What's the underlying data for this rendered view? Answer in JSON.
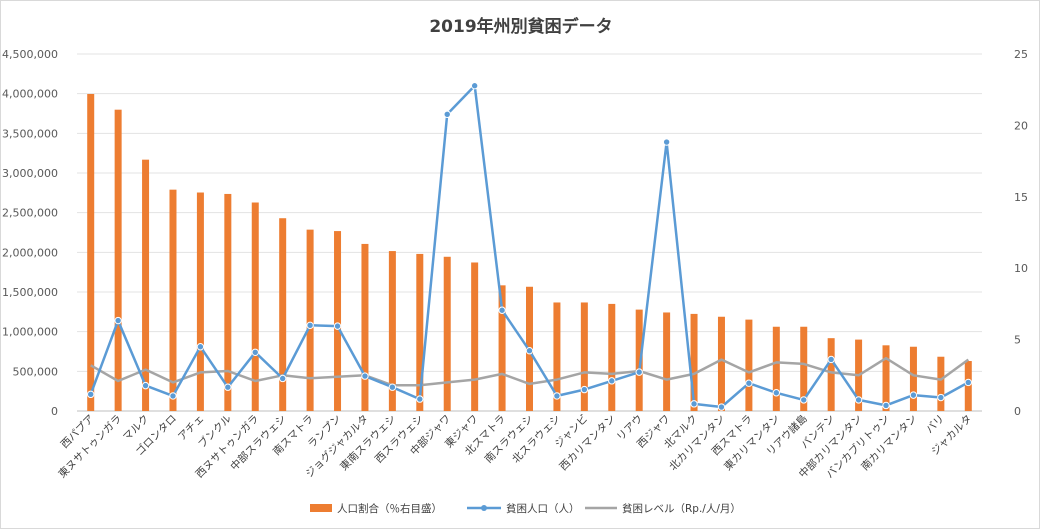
{
  "chart_data": {
    "type": "bar+line",
    "title": "2019年州別貧困データ",
    "categories": [
      "西パプア",
      "東ヌサトゥンガラ",
      "マルク",
      "ゴロンタロ",
      "アチェ",
      "ブンクル",
      "西ヌサトゥンガラ",
      "中部スラウェシ",
      "南スマトラ",
      "ランプン",
      "ジョグジャカルタ",
      "東南スラウェシ",
      "西スラウェシ",
      "中部ジャワ",
      "東ジャワ",
      "北スマトラ",
      "南スラウェシ",
      "北スラウェシ",
      "ジャンビ",
      "西カリマンタン",
      "リアウ",
      "西ジャワ",
      "北マルク",
      "北カリマンタン",
      "西スマトラ",
      "東カリマンタン",
      "リアウ諸島",
      "バンテン",
      "中部カリマンタン",
      "バンカブリトゥン",
      "南カリマンタン",
      "バリ",
      "ジャカルタ"
    ],
    "series": [
      {
        "name": "人口割合（％右目盛）",
        "type": "bar",
        "axis": "right",
        "color": "#ED7D31",
        "values": [
          22.2,
          21.1,
          17.6,
          15.5,
          15.3,
          15.2,
          14.6,
          13.5,
          12.7,
          12.6,
          11.7,
          11.2,
          11.0,
          10.8,
          10.4,
          8.8,
          8.7,
          7.6,
          7.6,
          7.5,
          7.1,
          6.9,
          6.8,
          6.6,
          6.4,
          5.9,
          5.9,
          5.1,
          5.0,
          4.6,
          4.5,
          3.8,
          3.5
        ]
      },
      {
        "name": "貧困人口（人）",
        "type": "line",
        "axis": "left",
        "color": "#5B9BD5",
        "marker": "circle",
        "values": [
          210000,
          1140000,
          320000,
          190000,
          810000,
          300000,
          740000,
          410000,
          1080000,
          1070000,
          440000,
          300000,
          150000,
          3740000,
          4100000,
          1270000,
          760000,
          190000,
          270000,
          380000,
          490000,
          3390000,
          90000,
          50000,
          350000,
          230000,
          140000,
          650000,
          140000,
          70000,
          200000,
          170000,
          360000
        ]
      },
      {
        "name": "貧困レベル（Rp./人/月）",
        "type": "line",
        "axis": "right",
        "color": "#A5A5A5",
        "values": [
          3.2,
          2.1,
          2.9,
          2.0,
          2.7,
          2.8,
          2.1,
          2.5,
          2.3,
          2.4,
          2.5,
          1.8,
          1.8,
          2.0,
          2.2,
          2.6,
          1.9,
          2.2,
          2.7,
          2.6,
          2.8,
          2.2,
          2.6,
          3.6,
          2.7,
          3.4,
          3.3,
          2.7,
          2.5,
          3.7,
          2.5,
          2.2,
          3.6
        ]
      }
    ],
    "yleft": {
      "min": 0,
      "max": 4500000,
      "ticks": [
        "0",
        "500,000",
        "1,000,000",
        "1,500,000",
        "2,000,000",
        "2,500,000",
        "3,000,000",
        "3,500,000",
        "4,000,000",
        "4,500,000"
      ]
    },
    "yright": {
      "min": 0,
      "max": 25,
      "ticks": [
        "0",
        "5",
        "10",
        "15",
        "20",
        "25"
      ]
    },
    "grid": true,
    "legend_position": "bottom"
  }
}
